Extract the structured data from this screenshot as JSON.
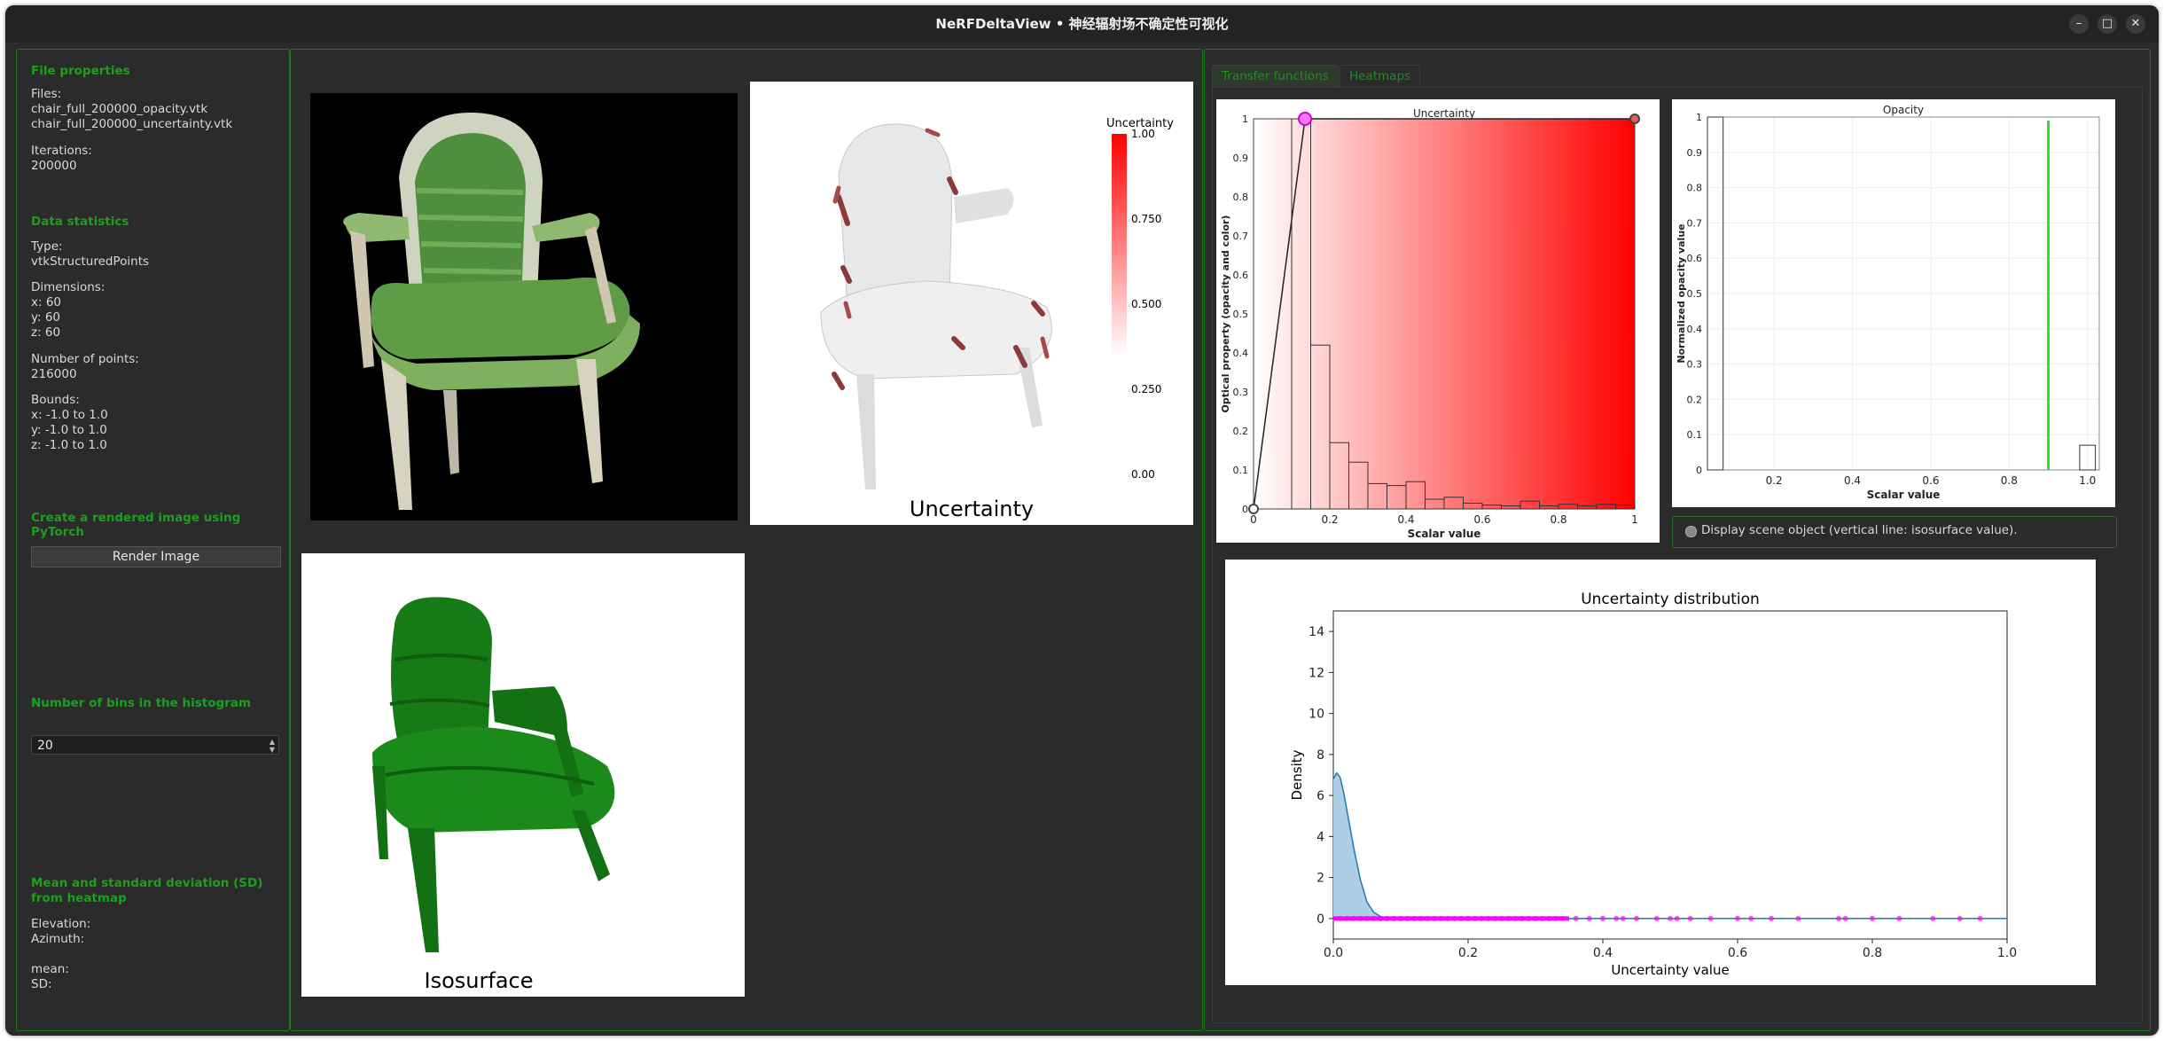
{
  "window": {
    "title": "NeRFDeltaView • 神经辐射场不确定性可视化",
    "minimize_label": "–",
    "maximize_label": "□",
    "close_label": "✕"
  },
  "sidebar": {
    "file_properties_title": "File properties",
    "files_label": "Files:",
    "file1": "chair_full_200000_opacity.vtk",
    "file2": "chair_full_200000_uncertainty.vtk",
    "iterations_label": "Iterations:",
    "iterations_value": "200000",
    "data_stats_title": "Data statistics",
    "type_label": "Type:",
    "type_value": "vtkStructuredPoints",
    "dimensions_label": "Dimensions:",
    "dim_x": "x: 60",
    "dim_y": "y: 60",
    "dim_z": "z: 60",
    "points_label": "Number of points:",
    "points_value": "216000",
    "bounds_label": "Bounds:",
    "bounds_x": "x: -1.0 to 1.0",
    "bounds_y": "y: -1.0 to 1.0",
    "bounds_z": "z: -1.0 to 1.0",
    "render_title": "Create a rendered image using PyTorch",
    "render_button": "Render Image",
    "bins_title": "Number of bins in the histogram",
    "bins_value": "20",
    "mean_sd_title": "Mean and standard deviation (SD) from heatmap",
    "elevation_label": "Elevation:",
    "azimuth_label": "Azimuth:",
    "mean_label": "mean:",
    "sd_label": "SD:"
  },
  "views": {
    "uncertainty_caption": "Uncertainty",
    "isosurface_caption": "Isosurface",
    "colorbar_title": "Uncertainty",
    "colorbar_ticks": [
      "1.00",
      "0.750",
      "0.500",
      "0.250",
      "0.00"
    ]
  },
  "tabs": {
    "transfer": "Transfer functions",
    "heatmaps": "Heatmaps"
  },
  "display_option": "Display scene object (vertical line: isosurface value).",
  "colors": {
    "accent": "#1e9e1e",
    "red": "#ff0000",
    "object_green": "#137a13",
    "magenta": "#ff00ff",
    "kde_blue": "#1f77b4"
  },
  "chart_data": [
    {
      "type": "bar",
      "title": "Uncertainty",
      "xlabel": "Scalar value",
      "ylabel": "Optical property (opacity and color)",
      "x_ticks": [
        "0",
        "0.2",
        "0.4",
        "0.6",
        "0.8",
        "1"
      ],
      "y_ticks": [
        "0",
        "0.1",
        "0.2",
        "0.3",
        "0.4",
        "0.5",
        "0.6",
        "0.7",
        "0.8",
        "0.9",
        "1"
      ],
      "xlim": [
        0,
        1
      ],
      "ylim": [
        0,
        1
      ],
      "bins_x": [
        0.125,
        0.175,
        0.225,
        0.275,
        0.325,
        0.375,
        0.425,
        0.475,
        0.525,
        0.575,
        0.625,
        0.675,
        0.725,
        0.775,
        0.825,
        0.875,
        0.925,
        0.975
      ],
      "values": [
        1.0,
        0.42,
        0.17,
        0.12,
        0.065,
        0.06,
        0.07,
        0.025,
        0.03,
        0.015,
        0.01,
        0.008,
        0.02,
        0.008,
        0.012,
        0.008,
        0.012,
        0.01
      ],
      "transfer_points": [
        [
          0,
          0
        ],
        [
          0.135,
          1.0
        ],
        [
          1.0,
          1.0
        ]
      ]
    },
    {
      "type": "bar",
      "title": "Opacity",
      "xlabel": "Scalar value",
      "ylabel": "Normalized opacity value",
      "x_ticks": [
        "0.2",
        "0.4",
        "0.6",
        "0.8",
        "1.0"
      ],
      "y_ticks": [
        "0",
        "0.1",
        "0.2",
        "0.3",
        "0.4",
        "0.5",
        "0.6",
        "0.7",
        "0.8",
        "0.9",
        "1"
      ],
      "xlim": [
        0.03,
        1.03
      ],
      "ylim": [
        0,
        1
      ],
      "bins_x": [
        0.05,
        1.0
      ],
      "values": [
        1.0,
        0.07
      ],
      "isosurface_value": 0.9
    },
    {
      "type": "area",
      "title": "Uncertainty distribution",
      "xlabel": "Uncertainty value",
      "ylabel": "Density",
      "x_ticks": [
        "0.0",
        "0.2",
        "0.4",
        "0.6",
        "0.8",
        "1.0"
      ],
      "y_ticks": [
        "0",
        "2",
        "4",
        "6",
        "8",
        "10",
        "12",
        "14"
      ],
      "xlim": [
        0,
        1
      ],
      "ylim": [
        -1,
        15
      ],
      "x": [
        0,
        0.005,
        0.01,
        0.015,
        0.02,
        0.03,
        0.04,
        0.05,
        0.06,
        0.07,
        0.08,
        0.1
      ],
      "y": [
        6.8,
        7.1,
        6.9,
        6.2,
        5.3,
        3.5,
        1.9,
        0.8,
        0.3,
        0.1,
        0.03,
        0
      ],
      "rug_x": [
        0.01,
        0.02,
        0.03,
        0.04,
        0.05,
        0.06,
        0.07,
        0.08,
        0.09,
        0.1,
        0.11,
        0.12,
        0.13,
        0.14,
        0.15,
        0.16,
        0.17,
        0.18,
        0.19,
        0.2,
        0.21,
        0.22,
        0.23,
        0.24,
        0.25,
        0.26,
        0.27,
        0.28,
        0.29,
        0.3,
        0.31,
        0.32,
        0.33,
        0.34,
        0.36,
        0.38,
        0.4,
        0.42,
        0.43,
        0.45,
        0.48,
        0.5,
        0.51,
        0.53,
        0.56,
        0.6,
        0.62,
        0.65,
        0.69,
        0.75,
        0.76,
        0.8,
        0.84,
        0.89,
        0.93,
        0.96
      ]
    }
  ]
}
